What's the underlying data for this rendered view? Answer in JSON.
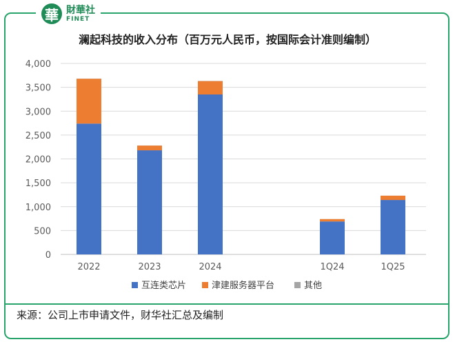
{
  "brand": {
    "seal_char": "華",
    "name_cn": "財華社",
    "name_en": "FINET"
  },
  "title": "澜起科技的收入分布（百万元人民币，按国际会计准则编制）",
  "source": "来源：公司上市申请文件，财华社汇总及编制",
  "colors": {
    "frame": "#27a46a",
    "grid": "#d9d9d9"
  },
  "chart_data": {
    "type": "bar",
    "stacked": true,
    "categories": [
      "2022",
      "2023",
      "2024",
      "1Q24",
      "1Q25"
    ],
    "series": [
      {
        "name": "互连类芯片",
        "color": "#4472c4",
        "values": [
          2740,
          2180,
          3350,
          690,
          1140
        ]
      },
      {
        "name": "津建服务器平台",
        "color": "#ed7d31",
        "values": [
          940,
          100,
          280,
          50,
          90
        ]
      },
      {
        "name": "其他",
        "color": "#a5a5a5",
        "values": [
          3,
          2,
          4,
          1,
          1
        ]
      }
    ],
    "ylim": [
      0,
      4000
    ],
    "yticks": [
      "0",
      "500",
      "1,000",
      "1,500",
      "2,000",
      "2,500",
      "3,000",
      "3,500",
      "4,000"
    ],
    "legend_position": "bottom",
    "grid": true
  }
}
